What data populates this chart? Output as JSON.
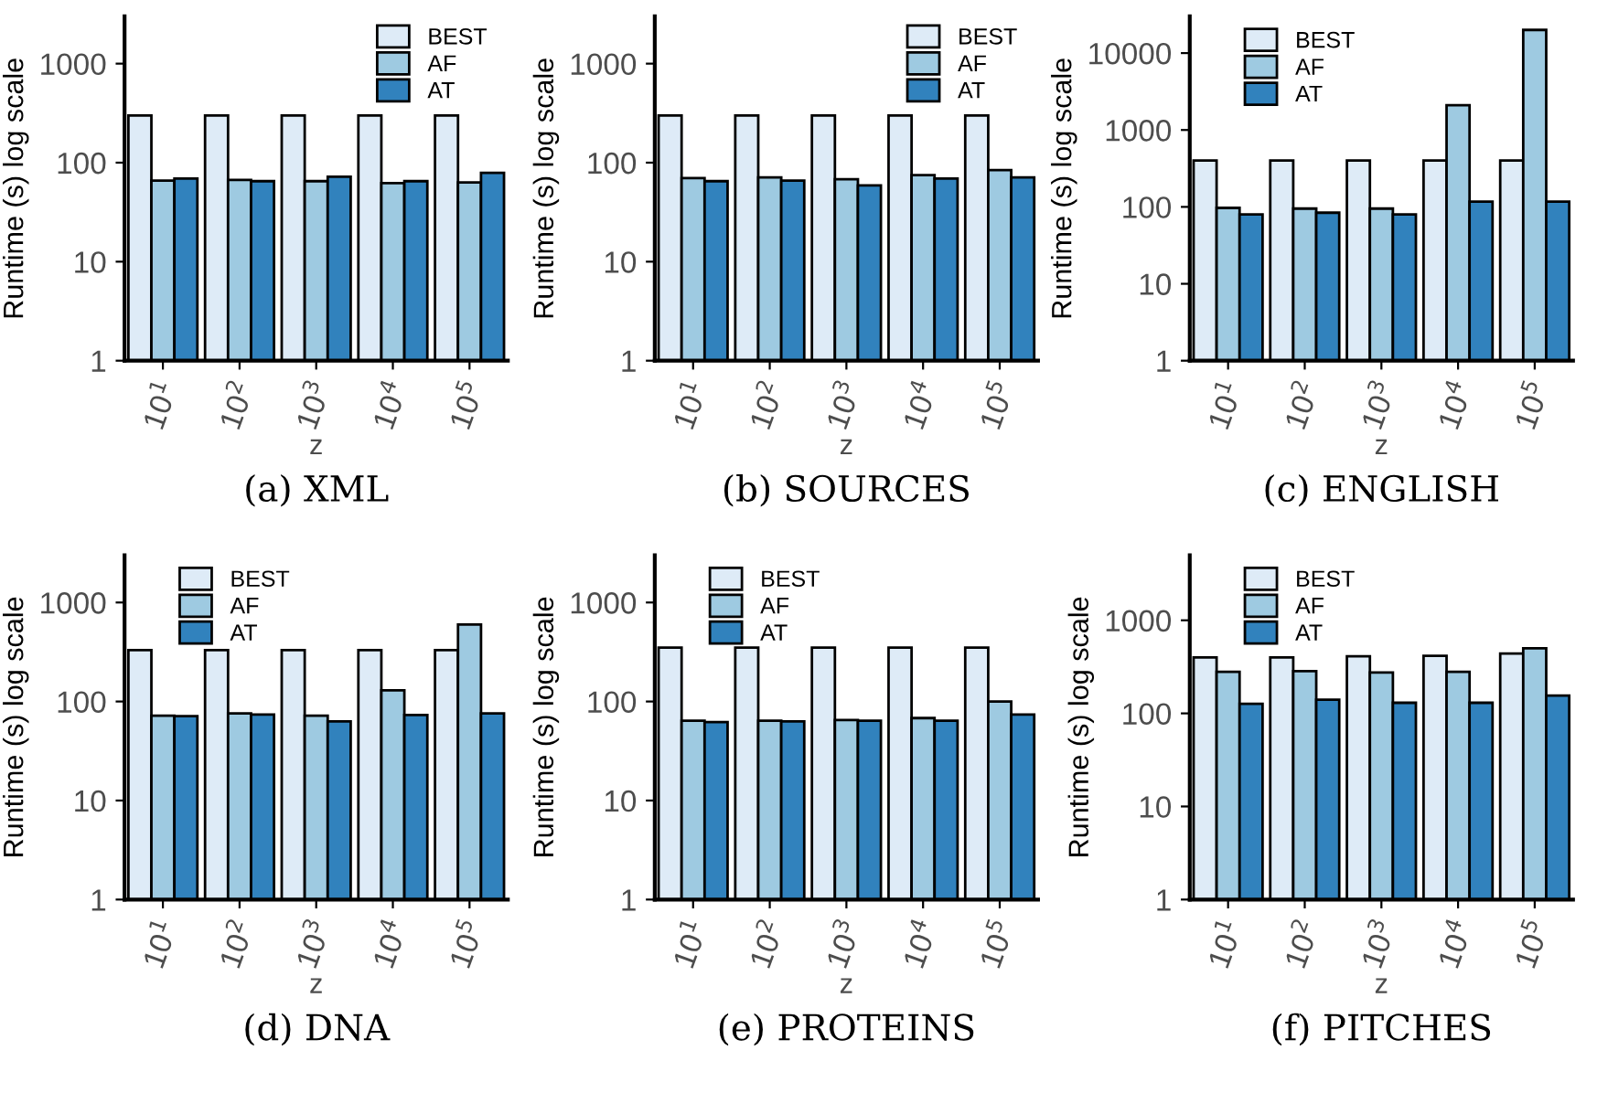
{
  "chart_data": [
    {
      "type": "bar",
      "categories": [
        "10$^{1}$",
        "10$^{2}$",
        "10$^{3}$",
        "10$^{4}$",
        "10$^{5}$"
      ],
      "xlabel": "z",
      "ylabel": "Runtime (s) log scale",
      "log": true,
      "ylim": [
        1,
        3000
      ],
      "yticks": [
        1,
        10,
        100,
        1000
      ],
      "legend": "top right",
      "grid": false,
      "annotations": [
        "(a) XML"
      ],
      "series": [
        {
          "name": "BEST",
          "color": "#deebf7",
          "values": [
            300,
            300,
            300,
            300,
            300
          ]
        },
        {
          "name": "AF",
          "color": "#9ecae1",
          "values": [
            66,
            67,
            65,
            62,
            63
          ]
        },
        {
          "name": "AT",
          "color": "#3182bd",
          "values": [
            69,
            65,
            72,
            65,
            79
          ]
        }
      ]
    },
    {
      "type": "bar",
      "categories": [
        "10$^{1}$",
        "10$^{2}$",
        "10$^{3}$",
        "10$^{4}$",
        "10$^{5}$"
      ],
      "xlabel": "z",
      "ylabel": "Runtime (s) log scale",
      "log": true,
      "ylim": [
        1,
        3000
      ],
      "yticks": [
        1,
        10,
        100,
        1000
      ],
      "legend": "top right",
      "grid": false,
      "annotations": [
        "(b) SOURCES"
      ],
      "series": [
        {
          "name": "BEST",
          "color": "#deebf7",
          "values": [
            300,
            300,
            300,
            300,
            300
          ]
        },
        {
          "name": "AF",
          "color": "#9ecae1",
          "values": [
            70,
            71,
            68,
            75,
            84
          ]
        },
        {
          "name": "AT",
          "color": "#3182bd",
          "values": [
            65,
            66,
            59,
            69,
            71
          ]
        }
      ]
    },
    {
      "type": "bar",
      "categories": [
        "10$^{1}$",
        "10$^{2}$",
        "10$^{3}$",
        "10$^{4}$",
        "10$^{5}$"
      ],
      "xlabel": "z",
      "ylabel": "Runtime (s) log scale",
      "log": true,
      "ylim": [
        1,
        30000
      ],
      "yticks": [
        1,
        10,
        100,
        1000,
        10000
      ],
      "legend": "top left",
      "grid": false,
      "annotations": [
        "(c) ENGLISH"
      ],
      "series": [
        {
          "name": "BEST",
          "color": "#deebf7",
          "values": [
            400,
            400,
            400,
            400,
            400
          ]
        },
        {
          "name": "AF",
          "color": "#9ecae1",
          "values": [
            97,
            95,
            95,
            2100,
            20000
          ]
        },
        {
          "name": "AT",
          "color": "#3182bd",
          "values": [
            80,
            84,
            80,
            117,
            117
          ]
        }
      ]
    },
    {
      "type": "bar",
      "categories": [
        "10$^{1}$",
        "10$^{2}$",
        "10$^{3}$",
        "10$^{4}$",
        "10$^{5}$"
      ],
      "xlabel": "z",
      "ylabel": "Runtime (s) log scale",
      "log": true,
      "ylim": [
        1,
        3000
      ],
      "yticks": [
        1,
        10,
        100,
        1000
      ],
      "legend": "top left",
      "grid": false,
      "annotations": [
        "(d) DNA"
      ],
      "series": [
        {
          "name": "BEST",
          "color": "#deebf7",
          "values": [
            330,
            330,
            330,
            330,
            330
          ]
        },
        {
          "name": "AF",
          "color": "#9ecae1",
          "values": [
            72,
            76,
            72,
            130,
            600
          ]
        },
        {
          "name": "AT",
          "color": "#3182bd",
          "values": [
            71,
            74,
            63,
            73,
            76
          ]
        }
      ]
    },
    {
      "type": "bar",
      "categories": [
        "10$^{1}$",
        "10$^{2}$",
        "10$^{3}$",
        "10$^{4}$",
        "10$^{5}$"
      ],
      "xlabel": "z",
      "ylabel": "Runtime (s) log scale",
      "log": true,
      "ylim": [
        1,
        3000
      ],
      "yticks": [
        1,
        10,
        100,
        1000
      ],
      "legend": "top left",
      "grid": false,
      "annotations": [
        "(e) PROTEINS"
      ],
      "series": [
        {
          "name": "BEST",
          "color": "#deebf7",
          "values": [
            350,
            350,
            350,
            350,
            350
          ]
        },
        {
          "name": "AF",
          "color": "#9ecae1",
          "values": [
            64,
            64,
            65,
            68,
            100
          ]
        },
        {
          "name": "AT",
          "color": "#3182bd",
          "values": [
            62,
            63,
            64,
            64,
            74
          ]
        }
      ]
    },
    {
      "type": "bar",
      "categories": [
        "10$^{1}$",
        "10$^{2}$",
        "10$^{3}$",
        "10$^{4}$",
        "10$^{5}$"
      ],
      "xlabel": "z",
      "ylabel": "Runtime (s) log scale",
      "log": true,
      "ylim": [
        1,
        5000
      ],
      "yticks": [
        1,
        10,
        100,
        1000
      ],
      "legend": "top left",
      "grid": false,
      "annotations": [
        "(f) PITCHES"
      ],
      "series": [
        {
          "name": "BEST",
          "color": "#deebf7",
          "values": [
            400,
            400,
            410,
            415,
            440
          ]
        },
        {
          "name": "AF",
          "color": "#9ecae1",
          "values": [
            280,
            285,
            275,
            280,
            500
          ]
        },
        {
          "name": "AT",
          "color": "#3182bd",
          "values": [
            127,
            140,
            130,
            130,
            155
          ]
        }
      ]
    }
  ]
}
